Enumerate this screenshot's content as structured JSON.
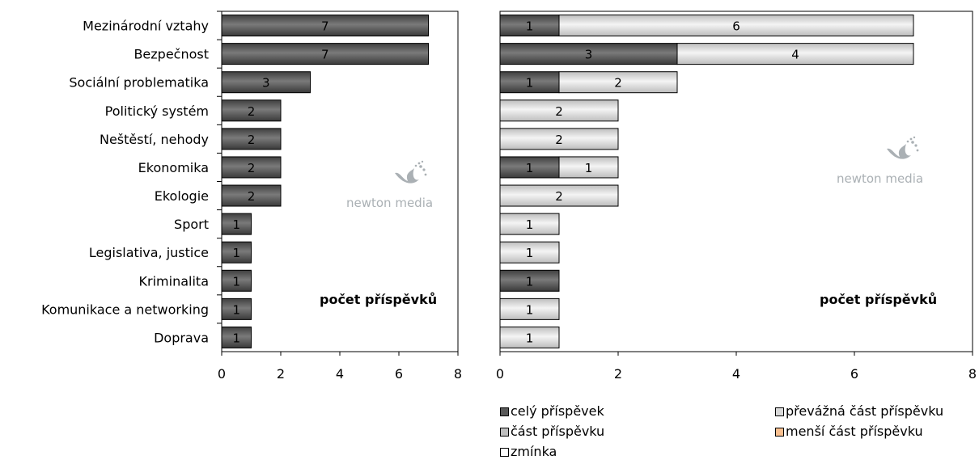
{
  "chart_data": [
    {
      "type": "bar",
      "orientation": "horizontal",
      "categories": [
        "Mezinárodní vztahy",
        "Bezpečnost",
        "Sociální problematika",
        "Politický systém",
        "Neštěstí, nehody",
        "Ekonomika",
        "Ekologie",
        "Sport",
        "Legislativa, justice",
        "Kriminalita",
        "Komunikace a networking",
        "Doprava"
      ],
      "values": [
        7,
        7,
        3,
        2,
        2,
        2,
        2,
        1,
        1,
        1,
        1,
        1
      ],
      "xlim": [
        0,
        8
      ],
      "xticks": [
        0,
        2,
        4,
        6,
        8
      ],
      "annotation": "počet příspěvků",
      "watermark": "newton media",
      "bar_color": "#595959"
    },
    {
      "type": "bar",
      "orientation": "horizontal",
      "stacked": true,
      "categories": [
        "Mezinárodní vztahy",
        "Bezpečnost",
        "Sociální problematika",
        "Politický systém",
        "Neštěstí, nehody",
        "Ekonomika",
        "Ekologie",
        "Sport",
        "Legislativa, justice",
        "Kriminalita",
        "Komunikace a networking",
        "Doprava"
      ],
      "series": [
        {
          "name": "celý příspěvek",
          "color": "#595959",
          "values": [
            1,
            3,
            1,
            0,
            0,
            1,
            0,
            0,
            0,
            1,
            0,
            0
          ]
        },
        {
          "name": "převážná část příspěvku",
          "color": "#d9d9d9",
          "values": [
            6,
            4,
            2,
            2,
            2,
            1,
            2,
            1,
            1,
            0,
            1,
            1
          ]
        },
        {
          "name": "část příspěvku",
          "color": "#bfbfbf",
          "values": [
            0,
            0,
            0,
            0,
            0,
            0,
            0,
            0,
            0,
            0,
            0,
            0
          ]
        },
        {
          "name": "menší část příspěvku",
          "color": "#fac090",
          "values": [
            0,
            0,
            0,
            0,
            0,
            0,
            0,
            0,
            0,
            0,
            0,
            0
          ]
        },
        {
          "name": "zmínka",
          "color": "#ffffff",
          "values": [
            0,
            0,
            0,
            0,
            0,
            0,
            0,
            0,
            0,
            0,
            0,
            0
          ]
        }
      ],
      "xlim": [
        0,
        8
      ],
      "xticks": [
        0,
        2,
        4,
        6,
        8
      ],
      "annotation": "počet příspěvků",
      "watermark": "newton media",
      "legend_position": "bottom"
    }
  ]
}
